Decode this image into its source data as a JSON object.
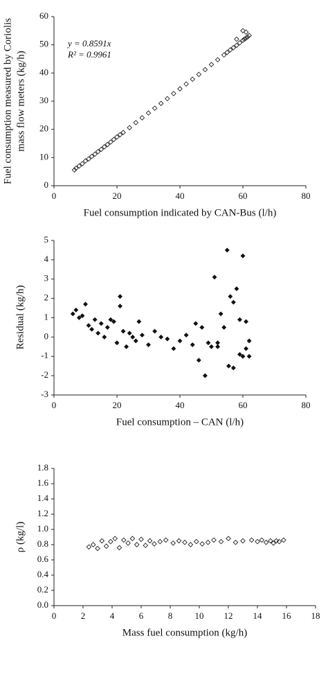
{
  "chart_data": [
    {
      "type": "scatter",
      "marker": "open-diamond",
      "color": "#222222",
      "annotations": [
        "y = 0.8591x",
        "R² = 0.9961"
      ],
      "xlabel": "Fuel consumption indicated by CAN-Bus (l/h)",
      "ylabel": [
        "Fuel consumption measured by Coriolis",
        "mass flow meters (kg/h)"
      ],
      "xlim": [
        0,
        80
      ],
      "xticks": [
        0,
        20,
        40,
        60,
        80
      ],
      "ylim": [
        0,
        60
      ],
      "yticks": [
        0,
        10,
        20,
        30,
        40,
        50,
        60
      ],
      "x": [
        6.5,
        7,
        8,
        9,
        10,
        11,
        12,
        13,
        14,
        15,
        16,
        17,
        18,
        19,
        20,
        21,
        22,
        24,
        26,
        28,
        30,
        32,
        34,
        36,
        38,
        40,
        42,
        44,
        46,
        48,
        50,
        52,
        54,
        55,
        56,
        57,
        58,
        59,
        60,
        60.5,
        61,
        61.5,
        62,
        60,
        61,
        58
      ],
      "values": [
        5.6,
        6.2,
        7.0,
        7.8,
        8.8,
        9.5,
        10.4,
        11.2,
        12.1,
        12.9,
        13.8,
        14.6,
        15.5,
        16.4,
        17.3,
        18.1,
        18.9,
        20.6,
        22.4,
        24.1,
        25.8,
        27.5,
        29.2,
        30.9,
        32.7,
        34.4,
        36.1,
        37.8,
        39.5,
        41.2,
        43.0,
        44.7,
        46.4,
        47.3,
        48.2,
        49.0,
        49.8,
        50.7,
        51.6,
        52.0,
        52.4,
        52.8,
        53.3,
        55.0,
        54.5,
        52.0
      ]
    },
    {
      "type": "scatter",
      "marker": "filled-diamond",
      "color": "#111111",
      "xlabel": "Fuel consumption – CAN (l/h)",
      "ylabel": "Residual (kg/h)",
      "xlim": [
        0,
        80
      ],
      "xticks": [
        0,
        20,
        40,
        60,
        80
      ],
      "ylim": [
        -3,
        5
      ],
      "yticks": [
        -3,
        -2,
        -1,
        0,
        1,
        2,
        3,
        4,
        5
      ],
      "x": [
        6,
        7,
        8,
        9,
        10,
        11,
        12,
        13,
        14,
        15,
        16,
        17,
        18,
        19,
        20,
        21,
        21,
        22,
        23,
        24,
        25,
        26,
        27,
        28,
        30,
        32,
        34,
        36,
        38,
        40,
        42,
        44,
        45,
        46,
        47,
        48,
        49,
        50,
        51,
        52,
        53,
        54,
        55,
        55.5,
        56,
        57,
        58,
        59,
        60,
        60,
        61,
        61,
        62,
        62,
        52,
        57,
        59
      ],
      "values": [
        1.2,
        1.4,
        1.0,
        1.1,
        1.7,
        0.6,
        0.4,
        0.9,
        0.2,
        0.7,
        0.0,
        0.5,
        0.9,
        0.8,
        -0.3,
        2.1,
        1.6,
        0.3,
        -0.5,
        0.2,
        0.0,
        -0.2,
        0.8,
        0.1,
        -0.4,
        0.3,
        0.0,
        -0.1,
        -0.6,
        -0.2,
        0.1,
        -0.4,
        0.7,
        -1.2,
        0.5,
        -2.0,
        -0.3,
        -0.5,
        3.1,
        -0.5,
        1.2,
        0.5,
        4.5,
        -1.5,
        2.1,
        -1.6,
        2.5,
        -0.9,
        4.2,
        -1.0,
        -0.6,
        0.8,
        -0.2,
        -1.0,
        -0.3,
        1.8,
        0.9
      ]
    },
    {
      "type": "scatter",
      "marker": "open-diamond",
      "color": "#222222",
      "xlabel": "Mass fuel consumption (kg/h)",
      "ylabel": "ρ (kg/l)",
      "xlim": [
        0,
        18
      ],
      "xticks": [
        0,
        2,
        4,
        6,
        8,
        10,
        12,
        14,
        16,
        18
      ],
      "ylim": [
        0,
        1.8
      ],
      "yticks": [
        {
          "value": 0,
          "label": "0.0"
        },
        0.2,
        0.4,
        0.6,
        0.8,
        {
          "value": 1,
          "label": "1.0"
        },
        1.2,
        1.4,
        1.6,
        1.8
      ],
      "x": [
        2.4,
        2.7,
        3.0,
        3.3,
        3.6,
        3.9,
        4.2,
        4.5,
        4.8,
        5.1,
        5.4,
        5.7,
        6.0,
        6.3,
        6.6,
        6.9,
        7.3,
        7.7,
        8.2,
        8.6,
        9.0,
        9.4,
        9.8,
        10.2,
        10.6,
        11.0,
        11.5,
        12.0,
        12.5,
        13.0,
        13.6,
        14.0,
        14.3,
        14.6,
        14.9,
        15.1,
        15.3,
        15.5,
        15.8
      ],
      "values": [
        0.77,
        0.8,
        0.75,
        0.85,
        0.78,
        0.84,
        0.88,
        0.76,
        0.86,
        0.82,
        0.88,
        0.8,
        0.87,
        0.79,
        0.85,
        0.81,
        0.84,
        0.86,
        0.82,
        0.85,
        0.83,
        0.8,
        0.84,
        0.81,
        0.83,
        0.86,
        0.84,
        0.88,
        0.83,
        0.85,
        0.86,
        0.84,
        0.86,
        0.83,
        0.85,
        0.82,
        0.85,
        0.84,
        0.86
      ]
    }
  ]
}
